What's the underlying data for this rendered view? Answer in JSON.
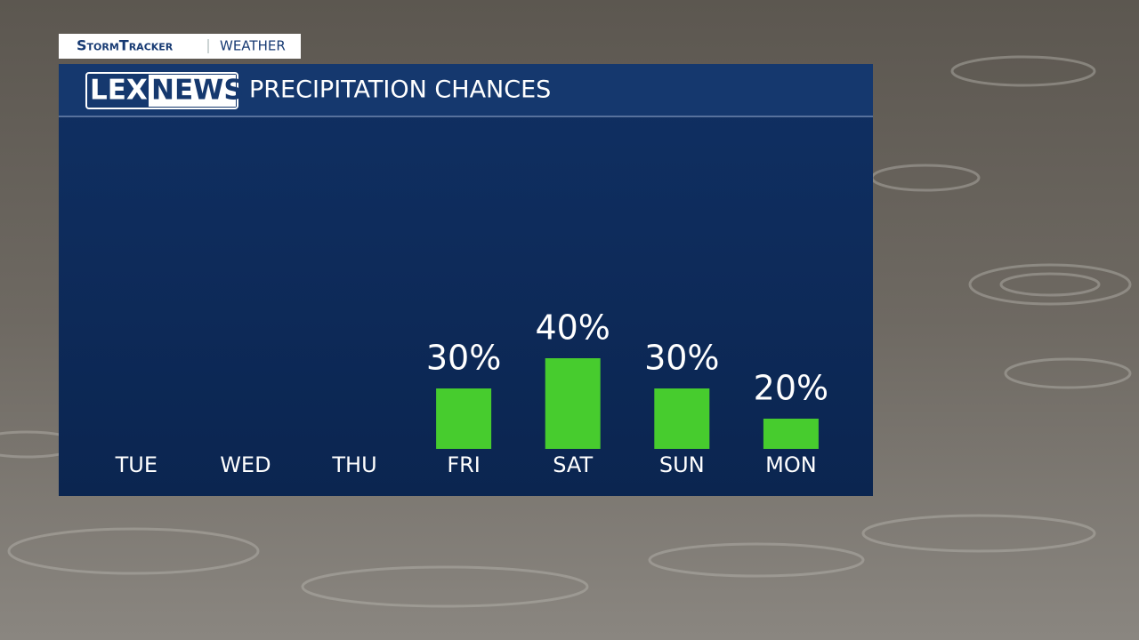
{
  "brand": {
    "name": "StormTracker",
    "section": "WEATHER"
  },
  "logo": {
    "left": "LEX",
    "right": "NEWS"
  },
  "chart_data": {
    "type": "bar",
    "title": "PRECIPITATION CHANCES",
    "categories": [
      "TUE",
      "WED",
      "THU",
      "FRI",
      "SAT",
      "SUN",
      "MON"
    ],
    "values": [
      null,
      null,
      null,
      30,
      40,
      30,
      20
    ],
    "value_labels": [
      null,
      null,
      null,
      "30%",
      "40%",
      "30%",
      "20%"
    ],
    "color": "#47cc2e",
    "ylim": [
      10,
      110
    ]
  }
}
